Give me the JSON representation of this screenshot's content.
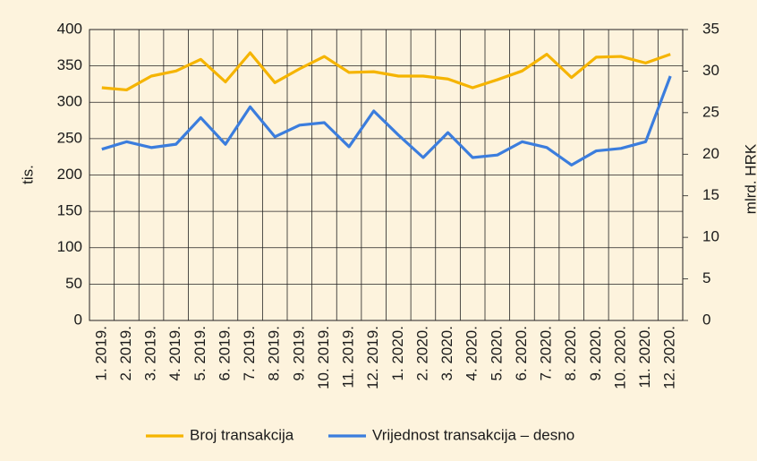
{
  "chart_data": {
    "type": "line",
    "y_label": "tis.",
    "y2_label": "mlrd. HRK",
    "categories": [
      "1. 2019.",
      "2. 2019.",
      "3. 2019.",
      "4. 2019.",
      "5. 2019.",
      "6. 2019.",
      "7. 2019.",
      "8. 2019.",
      "9. 2019.",
      "10. 2019.",
      "11. 2019.",
      "12. 2019.",
      "1. 2020.",
      "2. 2020.",
      "3. 2020.",
      "4. 2020.",
      "5. 2020.",
      "6. 2020.",
      "7. 2020.",
      "8. 2020.",
      "9. 2020.",
      "10. 2020.",
      "11. 2020.",
      "12. 2020."
    ],
    "series": [
      {
        "name": "Broj transakcija",
        "color": "#f5b400",
        "values": [
          320,
          317,
          336,
          343,
          359,
          328,
          368,
          327,
          346,
          363,
          341,
          342,
          336,
          336,
          332,
          320,
          331,
          343,
          366,
          334,
          362,
          363,
          354,
          366
        ]
      },
      {
        "name": "Vrijednost transakcija – desno",
        "color": "#3b7ddd",
        "axis": "y2",
        "values": [
          20.6,
          21.5,
          20.8,
          21.2,
          24.4,
          21.2,
          25.7,
          22.1,
          23.5,
          23.8,
          20.9,
          25.2,
          22.3,
          19.6,
          22.6,
          19.6,
          19.9,
          21.5,
          20.8,
          18.7,
          20.4,
          20.7,
          21.5,
          29.4
        ]
      }
    ],
    "ylim": [
      0,
      400
    ],
    "yticks": [
      0,
      50,
      100,
      150,
      200,
      250,
      300,
      350,
      400
    ],
    "y2lim": [
      0,
      35
    ],
    "y2ticks": [
      0,
      5,
      10,
      15,
      20,
      25,
      30,
      35
    ],
    "grid": true,
    "legend": "bottom"
  }
}
